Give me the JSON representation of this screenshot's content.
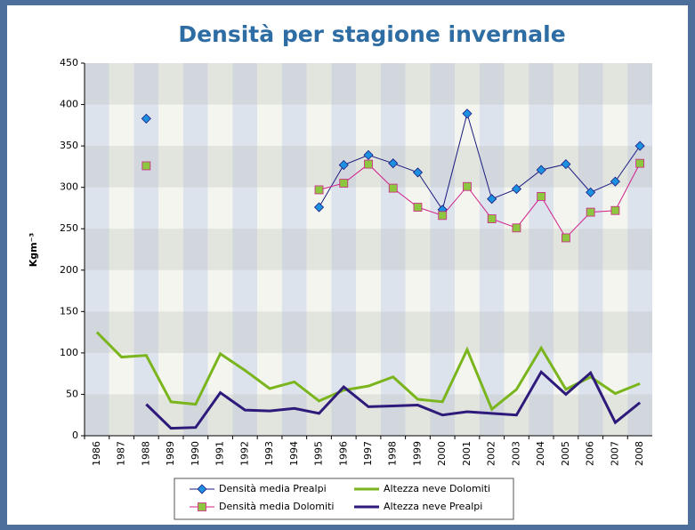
{
  "chart_data": {
    "type": "line",
    "title": "Densità per stagione invernale",
    "y_label": "Kgm⁻³",
    "categories": [
      "1986",
      "1987",
      "1988",
      "1989",
      "1990",
      "1991",
      "1992",
      "1993",
      "1994",
      "1995",
      "1996",
      "1997",
      "1998",
      "1999",
      "2000",
      "2001",
      "2002",
      "2003",
      "2004",
      "2005",
      "2006",
      "2007",
      "2008"
    ],
    "ylim": [
      0,
      450
    ],
    "yticks": [
      0,
      50,
      100,
      150,
      200,
      250,
      300,
      350,
      400,
      450
    ],
    "series": [
      {
        "name": "Densità media Prealpi",
        "color": "#1a1a80",
        "marker": "diamond",
        "marker_color": "#1e90e0",
        "values": [
          null,
          null,
          383,
          null,
          null,
          null,
          null,
          null,
          null,
          276,
          327,
          339,
          329,
          318,
          273,
          389,
          286,
          298,
          321,
          328,
          294,
          307,
          350
        ]
      },
      {
        "name": "Densità media Dolomiti",
        "color": "#d0208a",
        "marker": "square",
        "marker_color": "#8dc63f",
        "values": [
          null,
          null,
          326,
          null,
          null,
          null,
          null,
          null,
          null,
          297,
          305,
          328,
          299,
          276,
          266,
          301,
          262,
          251,
          289,
          239,
          270,
          272,
          329
        ]
      },
      {
        "name": "Altezza neve Dolomiti",
        "color": "#7ab51d",
        "marker": null,
        "values": [
          125,
          95,
          97,
          41,
          38,
          99,
          79,
          57,
          65,
          42,
          55,
          60,
          71,
          44,
          41,
          104,
          32,
          56,
          106,
          56,
          71,
          51,
          63
        ]
      },
      {
        "name": "Altezza neve Prealpi",
        "color": "#2e1a7a",
        "marker": null,
        "values": [
          null,
          null,
          38,
          9,
          10,
          52,
          31,
          30,
          33,
          27,
          59,
          35,
          36,
          37,
          25,
          29,
          27,
          25,
          77,
          50,
          76,
          16,
          40
        ]
      }
    ]
  }
}
